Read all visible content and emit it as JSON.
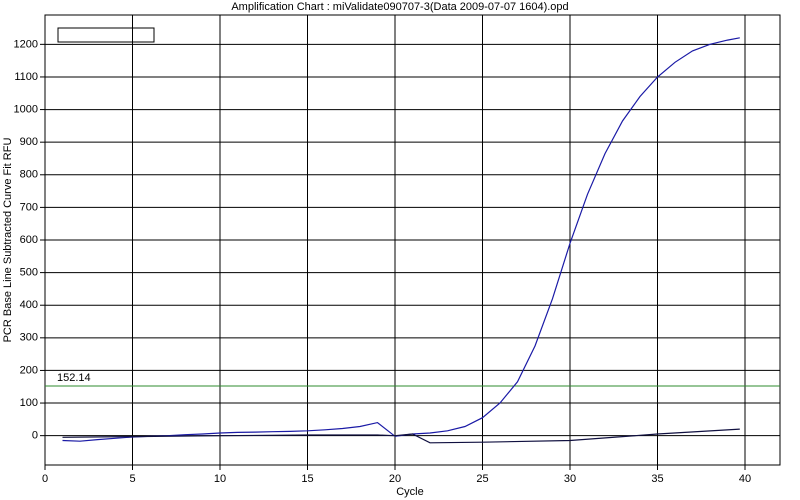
{
  "chart_data": {
    "type": "line",
    "title": "Amplification Chart : miValidate090707-3(Data 2009-07-07 1604).opd",
    "x_label": "Cycle",
    "y_label": "PCR Base Line Subtracted Curve Fit RFU",
    "xlim": [
      0,
      42
    ],
    "xticks": [
      0,
      5,
      10,
      15,
      20,
      25,
      30,
      35,
      40
    ],
    "ylim": [
      -90,
      1290
    ],
    "yticks": [
      0,
      100,
      200,
      300,
      400,
      500,
      600,
      700,
      800,
      900,
      1000,
      1100,
      1200
    ],
    "grid": true,
    "threshold": 152.14,
    "threshold_color": "#2e8b2e",
    "series": [
      {
        "color": "#1a1aa6",
        "x": [
          1,
          2,
          3,
          4,
          5,
          6,
          7,
          8,
          9,
          10,
          11,
          12,
          13,
          14,
          15,
          16,
          17,
          18,
          19,
          20,
          21,
          22,
          23,
          24,
          25,
          26,
          27,
          28,
          29,
          30,
          31,
          32,
          33,
          34,
          35,
          36,
          37,
          38,
          39,
          39.7
        ],
        "values": [
          -15,
          -17,
          -12,
          -8,
          -4,
          -2,
          0,
          3,
          5,
          8,
          10,
          11,
          12,
          13,
          15,
          18,
          22,
          28,
          40,
          -2,
          5,
          8,
          15,
          28,
          55,
          100,
          165,
          275,
          420,
          590,
          740,
          865,
          965,
          1040,
          1100,
          1145,
          1180,
          1200,
          1213,
          1220
        ]
      },
      {
        "color": "#101040",
        "x": [
          1,
          5,
          10,
          15,
          19,
          20,
          21,
          22,
          25,
          30,
          35,
          39.7
        ],
        "values": [
          -5,
          -3,
          0,
          2,
          2,
          0,
          5,
          -22,
          -20,
          -15,
          5,
          20
        ]
      }
    ]
  }
}
